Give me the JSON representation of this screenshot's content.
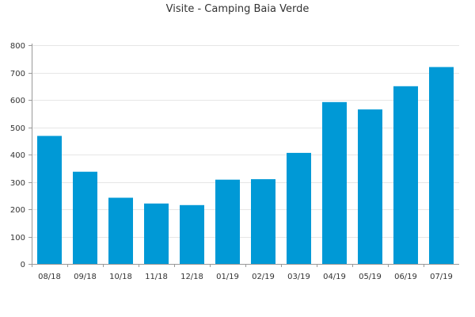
{
  "chart_data": {
    "type": "bar",
    "title": "Visite - Camping Baia Verde",
    "xlabel": "",
    "ylabel": "",
    "categories": [
      "08/18",
      "09/18",
      "10/18",
      "11/18",
      "12/18",
      "01/19",
      "02/19",
      "03/19",
      "04/19",
      "05/19",
      "06/19",
      "07/19"
    ],
    "values": [
      468,
      337,
      242,
      221,
      215,
      308,
      310,
      406,
      592,
      565,
      650,
      720
    ],
    "ylim": [
      0,
      800
    ],
    "yticks": [
      0,
      100,
      200,
      300,
      400,
      500,
      600,
      700,
      800
    ],
    "grid": true,
    "legend": "none",
    "bar_color": "#0099d6",
    "grid_color": "#e6e6e6",
    "axis_color": "#999999"
  }
}
